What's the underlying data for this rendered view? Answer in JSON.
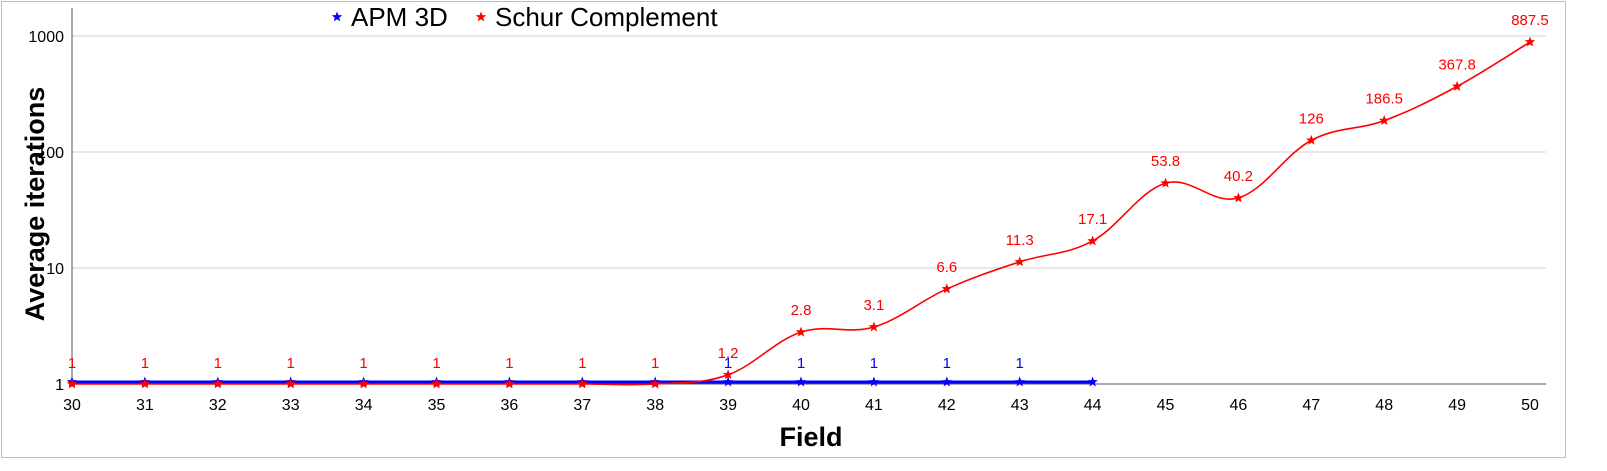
{
  "chart_data": {
    "type": "line",
    "xlabel": "Field",
    "ylabel": "Average iterations",
    "yscale": "log",
    "ylim": [
      1,
      1000
    ],
    "xlim": [
      30,
      50
    ],
    "yticks": [
      "1",
      "10",
      "100",
      "1000"
    ],
    "xticks": [
      "30",
      "31",
      "32",
      "33",
      "34",
      "35",
      "36",
      "37",
      "38",
      "39",
      "40",
      "41",
      "42",
      "43",
      "44",
      "45",
      "46",
      "47",
      "48",
      "49",
      "50"
    ],
    "grid": "horizontal",
    "legend_position": "top",
    "series": [
      {
        "name": "APM 3D",
        "color": "#0000ff",
        "marker": "star",
        "x": [
          30,
          31,
          32,
          33,
          34,
          35,
          36,
          37,
          38,
          39,
          40,
          41,
          42,
          43,
          44
        ],
        "values": [
          1,
          1,
          1,
          1,
          1,
          1,
          1,
          1,
          1,
          1,
          1,
          1,
          1,
          1,
          1
        ],
        "data_labels": [
          "",
          "",
          "",
          "",
          "",
          "",
          "",
          "",
          "",
          "1",
          "1",
          "1",
          "1",
          "1",
          ""
        ]
      },
      {
        "name": "Schur Complement",
        "color": "#ff0000",
        "marker": "star",
        "x": [
          30,
          31,
          32,
          33,
          34,
          35,
          36,
          37,
          38,
          39,
          40,
          41,
          42,
          43,
          44,
          45,
          46,
          47,
          48,
          49,
          50
        ],
        "values": [
          1,
          1,
          1,
          1,
          1,
          1,
          1,
          1,
          1,
          1.2,
          2.8,
          3.1,
          6.6,
          11.3,
          17.1,
          53.8,
          40.2,
          126,
          186.5,
          367.8,
          887.5
        ],
        "data_labels": [
          "1",
          "1",
          "1",
          "1",
          "1",
          "1",
          "1",
          "1",
          "1",
          "1.2",
          "2.8",
          "3.1",
          "6.6",
          "11.3",
          "17.1",
          "53.8",
          "40.2",
          "126",
          "186.5",
          "367.8",
          "887.5"
        ]
      }
    ]
  }
}
